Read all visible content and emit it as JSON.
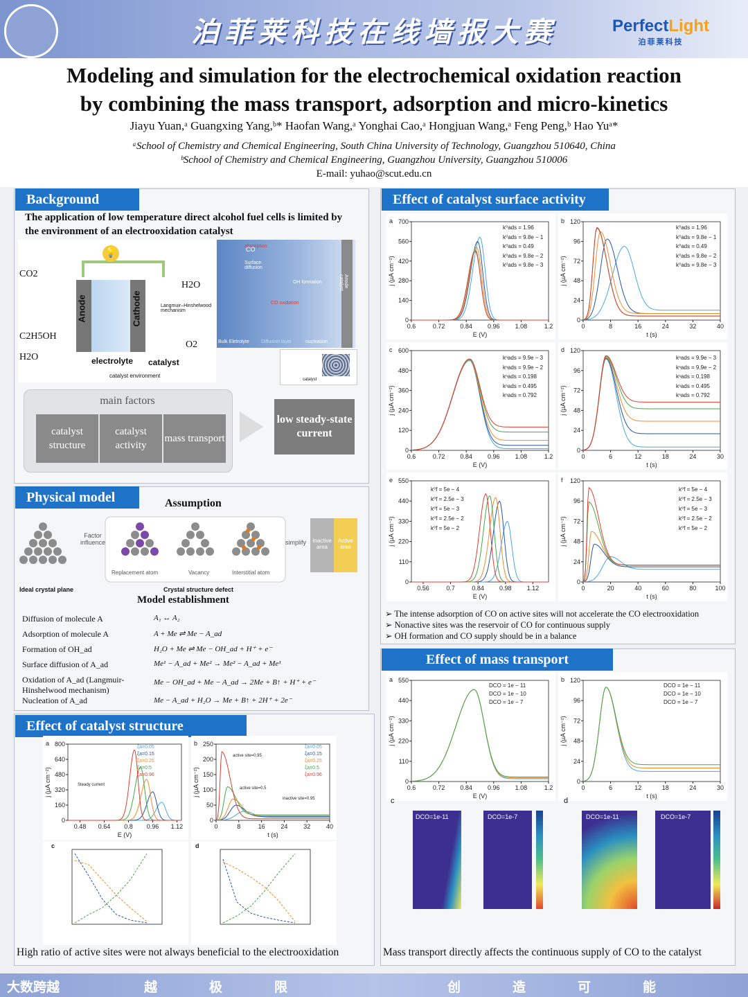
{
  "banner": {
    "title": "泊菲莱科技在线墙报大赛",
    "logo_brand_1": "Perfect",
    "logo_brand_2": "Light",
    "logo_sub": "泊菲莱科技"
  },
  "header": {
    "title_line1": "Modeling and simulation for the electrochemical oxidation reaction",
    "title_line2": "by combining the mass transport, adsorption and micro-kinetics",
    "authors": "Jiayu Yuan,ᵃ Guangxing Yang,ᵇ* Haofan Wang,ᵃ Yonghai Cao,ᵃ Hongjuan Wang,ᵃ Feng Peng,ᵇ Hao Yuᵃ*",
    "aff_a": "ᵃSchool of Chemistry and Chemical Engineering, South China University of Technology, Guangzhou 510640, China",
    "aff_b": "ᵇSchool of Chemistry and Chemical Engineering, Guangzhou University, Guangzhou 510006",
    "email": "E-mail: yuhao@scut.edu.cn"
  },
  "background": {
    "heading": "Background",
    "intro": "The application of low temperature direct alcohol fuel cells is limited by the environment of an electrooxidation catalyst",
    "cell": {
      "co2": "CO2",
      "h2o_top": "H2O",
      "c2h5oh": "C2H5OH",
      "h2o_bottom": "H2O",
      "o2": "O2",
      "anode": "Anode",
      "cathode": "Cathode",
      "electrolyte": "electrolyte",
      "catalyst": "catalyst",
      "env": "catalyst environment",
      "lh": "Langmuir–Hinshelwood mechanism"
    },
    "mech": {
      "absorption": "absorption",
      "surface_diffusion": "Surface diffusion",
      "oh_formation": "OH formation",
      "co_oxidation": "CO oxidation",
      "nucleation": "nucleation",
      "bulk": "Bulk Eletrolyte",
      "diffusion_layer": "Diffusion layer",
      "anode_catalyst": "Anode catalyst",
      "catalyst_label": "catalyst",
      "co": "CO"
    },
    "factors_title": "main factors",
    "factors": [
      "catalyst structure",
      "catalyst activity",
      "mass transport"
    ],
    "result": "low steady-state current"
  },
  "physical": {
    "heading": "Physical model",
    "assumption": "Assumption",
    "factor_influence": "Factor influence",
    "ideal": "Ideal crystal plane",
    "defect": "Crystal structure defect",
    "replacement": "Replacement atom",
    "vacancy": "Vacancy",
    "interstitial": "Interstitial atom",
    "simplify": "simplify",
    "inactive": "Inactive area",
    "active": "Active area",
    "model_title": "Model establishment",
    "rows": [
      {
        "name": "Diffusion of molecule A",
        "eq": "A₁ ↔ A₂"
      },
      {
        "name": "Adsorption of molecule A",
        "eq": "A + Me ⇌ Me − A_ad"
      },
      {
        "name": "Formation of OH_ad",
        "eq": "H₂O + Me ⇌ Me − OH_ad + H⁺ + e⁻"
      },
      {
        "name": "Surface diffusion of A_ad",
        "eq": "Me¹ − A_ad + Me² → Me² − A_ad + Me¹"
      },
      {
        "name": "Oxidation of A_ad (Langmuir-Hinshelwood mechanism)",
        "eq": "Me − OH_ad + Me − A_ad → 2Me + B↑ + H⁺ + e⁻"
      },
      {
        "name": "Nucleation of A_ad",
        "eq": "Me − A_ad + H₂O → Me + B↑ + 2H⁺ + 2e⁻"
      }
    ]
  },
  "structure": {
    "heading": "Effect of catalyst structure",
    "caption": "High ratio of active sites were not always beneficial to the electrooxidation",
    "legend": [
      "ξa=0.05",
      "ξa=0.15",
      "ξa=0.25",
      "ξa=0.5",
      "ξa=0.96"
    ],
    "notes": {
      "active95": "active site=0.95",
      "inactive95": "inactive site=0.95",
      "active5": "active site=0.5",
      "steady": "Steady current"
    }
  },
  "activity": {
    "heading": "Effect of catalyst surface activity",
    "bullets": [
      "The intense adsorption of CO on active sites will not accelerate the CO electrooxidation",
      "Nonactive sites was the reservoir of CO for continuous supply",
      "OH formation and CO supply should be in a balance"
    ],
    "legend_ab": [
      "k⁰ads = 1.96",
      "k⁰ads = 9.8e − 1",
      "k⁰ads = 0.49",
      "k⁰ads = 9.8e − 2",
      "k⁰ads = 9.8e − 3"
    ],
    "legend_cd": [
      "kⁿads = 9.9e − 3",
      "kⁿads = 9.9e − 2",
      "kⁿads = 0.198",
      "kⁿads = 0.495",
      "kⁿads = 0.792"
    ],
    "legend_ef": [
      "k⁰f = 5e − 4",
      "k⁰f = 2.5e − 3",
      "k⁰f = 5e − 3",
      "k⁰f = 2.5e − 2",
      "k⁰f = 5e − 2"
    ]
  },
  "mass": {
    "heading": "Effect of mass transport",
    "caption": "Mass transport directly affects the continuous supply of CO to the catalyst",
    "legend": [
      "DCO = 1e − 11",
      "DCO = 1e − 10",
      "DCO = 1e − 7"
    ],
    "maps": [
      "DCO=1e-11",
      "DCO=1e-7",
      "DCO=1e-11",
      "DCO=1e-7"
    ]
  },
  "footer": {
    "brand": "大数跨越",
    "chars": [
      "越",
      "极",
      "限",
      "创",
      "造",
      "可",
      "能"
    ]
  },
  "colors": {
    "blue": "#1e73c9",
    "c1": "#4aa6e0",
    "c2": "#2554a8",
    "c3": "#f08a2b",
    "c4": "#44a845",
    "c5": "#e33b2f"
  },
  "chart_data": [
    {
      "type": "line",
      "id": "activity-a",
      "title": "a",
      "xlabel": "E (V)",
      "ylabel": "j (µA cm⁻²)",
      "xlim": [
        0.6,
        1.2
      ],
      "ylim": [
        0,
        700
      ],
      "x_ticks": [
        0.6,
        0.72,
        0.84,
        0.96,
        1.08,
        1.2
      ],
      "y_ticks": [
        0,
        140,
        280,
        420,
        560,
        700
      ],
      "series": [
        {
          "name": "k=1.96",
          "peak_x": 0.9,
          "peak_y": 590,
          "width": 0.03
        },
        {
          "name": "k=9.8e-1",
          "peak_x": 0.89,
          "peak_y": 560,
          "width": 0.03
        },
        {
          "name": "k=0.49",
          "peak_x": 0.885,
          "peak_y": 520,
          "width": 0.03
        },
        {
          "name": "k=9.8e-2",
          "peak_x": 0.88,
          "peak_y": 500,
          "width": 0.03
        },
        {
          "name": "k=9.8e-3",
          "peak_x": 0.88,
          "peak_y": 490,
          "width": 0.03
        }
      ]
    },
    {
      "type": "line",
      "id": "activity-b",
      "title": "b",
      "xlabel": "t (s)",
      "ylabel": "j (µA cm⁻²)",
      "xlim": [
        0,
        40
      ],
      "ylim": [
        0,
        120
      ],
      "x_ticks": [
        0,
        8,
        16,
        24,
        32,
        40
      ],
      "y_ticks": [
        0,
        24,
        48,
        72,
        96,
        120
      ],
      "series": [
        {
          "name": "k=1.96",
          "peak_x": 12,
          "peak_y": 90,
          "tail": 12
        },
        {
          "name": "k=9.8e-1",
          "peak_x": 7,
          "peak_y": 99,
          "tail": 8
        },
        {
          "name": "k=0.49",
          "peak_x": 5,
          "peak_y": 108,
          "tail": 8
        },
        {
          "name": "k=9.8e-2",
          "peak_x": 4,
          "peak_y": 112,
          "tail": 5
        },
        {
          "name": "k=9.8e-3",
          "peak_x": 4,
          "peak_y": 113,
          "tail": 5
        }
      ]
    },
    {
      "type": "line",
      "id": "activity-c",
      "title": "c",
      "xlabel": "E (V)",
      "ylabel": "j (µA cm⁻²)",
      "xlim": [
        0.6,
        1.2
      ],
      "ylim": [
        0,
        600
      ],
      "x_ticks": [
        0.6,
        0.72,
        0.84,
        0.96,
        1.08,
        1.2
      ],
      "y_ticks": [
        0,
        120,
        240,
        360,
        480,
        600
      ],
      "series": [
        {
          "name": "k=9.9e-3",
          "peak_x": 0.855,
          "peak_y": 540,
          "tail": 10
        },
        {
          "name": "k=9.9e-2",
          "peak_x": 0.855,
          "peak_y": 545,
          "tail": 30
        },
        {
          "name": "k=0.198",
          "peak_x": 0.855,
          "peak_y": 545,
          "tail": 60
        },
        {
          "name": "k=0.495",
          "peak_x": 0.855,
          "peak_y": 548,
          "tail": 110
        },
        {
          "name": "k=0.792",
          "peak_x": 0.855,
          "peak_y": 550,
          "tail": 140
        }
      ]
    },
    {
      "type": "line",
      "id": "activity-d",
      "title": "d",
      "xlabel": "t (s)",
      "ylabel": "j (µA cm⁻²)",
      "xlim": [
        0,
        30
      ],
      "ylim": [
        0,
        120
      ],
      "x_ticks": [
        0,
        6,
        12,
        18,
        24,
        30
      ],
      "y_ticks": [
        0,
        24,
        48,
        72,
        96,
        120
      ],
      "series": [
        {
          "name": "k=9.9e-3",
          "peak_x": 5,
          "peak_y": 110,
          "tail": 4
        },
        {
          "name": "k=9.9e-2",
          "peak_x": 5,
          "peak_y": 111,
          "tail": 20
        },
        {
          "name": "k=0.198",
          "peak_x": 5,
          "peak_y": 112,
          "tail": 35
        },
        {
          "name": "k=0.495",
          "peak_x": 5,
          "peak_y": 113,
          "tail": 50
        },
        {
          "name": "k=0.792",
          "peak_x": 5,
          "peak_y": 114,
          "tail": 58
        }
      ]
    },
    {
      "type": "line",
      "id": "activity-e",
      "title": "e",
      "xlabel": "E (V)",
      "ylabel": "j (µA cm⁻²)",
      "xlim": [
        0.5,
        1.2
      ],
      "ylim": [
        0,
        550
      ],
      "x_ticks": [
        0.56,
        0.7,
        0.84,
        0.98,
        1.12
      ],
      "y_ticks": [
        0,
        110,
        220,
        330,
        440,
        550
      ],
      "series": [
        {
          "name": "kf=5e-4",
          "peak_x": 0.99,
          "peak_y": 330,
          "width": 0.03
        },
        {
          "name": "kf=2.5e-3",
          "peak_x": 0.95,
          "peak_y": 440,
          "width": 0.03
        },
        {
          "name": "kf=5e-3",
          "peak_x": 0.93,
          "peak_y": 460,
          "width": 0.03
        },
        {
          "name": "kf=2.5e-2",
          "peak_x": 0.9,
          "peak_y": 470,
          "width": 0.03
        },
        {
          "name": "kf=5e-2",
          "peak_x": 0.88,
          "peak_y": 480,
          "width": 0.03
        }
      ]
    },
    {
      "type": "line",
      "id": "activity-f",
      "title": "f",
      "xlabel": "t (s)",
      "ylabel": "j (µA cm⁻²)",
      "xlim": [
        0,
        100
      ],
      "ylim": [
        0,
        120
      ],
      "x_ticks": [
        0,
        20,
        40,
        60,
        80,
        100
      ],
      "y_ticks": [
        0,
        24,
        48,
        72,
        96,
        120
      ],
      "series": [
        {
          "name": "kf=5e-4",
          "peak_x": 20,
          "peak_y": 30,
          "tail": 15
        },
        {
          "name": "kf=2.5e-3",
          "peak_x": 8,
          "peak_y": 45,
          "tail": 18
        },
        {
          "name": "kf=5e-3",
          "peak_x": 6,
          "peak_y": 60,
          "tail": 20
        },
        {
          "name": "kf=2.5e-2",
          "peak_x": 4,
          "peak_y": 95,
          "tail": 20
        },
        {
          "name": "kf=5e-2",
          "peak_x": 4,
          "peak_y": 112,
          "tail": 20
        }
      ]
    },
    {
      "type": "line",
      "id": "mass-a",
      "title": "a",
      "xlabel": "E (V)",
      "ylabel": "j (µA cm⁻²)",
      "xlim": [
        0.6,
        1.2
      ],
      "ylim": [
        0,
        550
      ],
      "x_ticks": [
        0.6,
        0.72,
        0.84,
        0.96,
        1.08,
        1.2
      ],
      "y_ticks": [
        0,
        110,
        220,
        330,
        440,
        550
      ],
      "series": [
        {
          "name": "D=1e-11",
          "peak_x": 0.875,
          "peak_y": 500,
          "tail": 15
        },
        {
          "name": "D=1e-10",
          "peak_x": 0.875,
          "peak_y": 500,
          "tail": 20
        },
        {
          "name": "D=1e-7",
          "peak_x": 0.875,
          "peak_y": 500,
          "tail": 25
        }
      ]
    },
    {
      "type": "line",
      "id": "mass-b",
      "title": "b",
      "xlabel": "t (s)",
      "ylabel": "j (µA cm⁻²)",
      "xlim": [
        0,
        30
      ],
      "ylim": [
        0,
        120
      ],
      "x_ticks": [
        0,
        6,
        12,
        18,
        24,
        30
      ],
      "y_ticks": [
        0,
        24,
        48,
        72,
        96,
        120
      ],
      "series": [
        {
          "name": "D=1e-11",
          "peak_x": 5,
          "peak_y": 112,
          "tail": 12
        },
        {
          "name": "D=1e-10",
          "peak_x": 5,
          "peak_y": 112,
          "tail": 16
        },
        {
          "name": "D=1e-7",
          "peak_x": 5,
          "peak_y": 112,
          "tail": 20
        }
      ]
    },
    {
      "type": "line",
      "id": "struct-a",
      "title": "a",
      "xlabel": "E (V)",
      "ylabel": "j (µA cm⁻²)",
      "xlim": [
        0.4,
        1.15
      ],
      "ylim": [
        0,
        800
      ],
      "x_ticks": [
        0.48,
        0.64,
        0.8,
        0.96,
        1.12
      ],
      "y_ticks": [
        0,
        160,
        320,
        480,
        640,
        800
      ],
      "series": [
        {
          "name": "0.05",
          "peak_x": 1.02,
          "peak_y": 190,
          "width": 0.035
        },
        {
          "name": "0.15",
          "peak_x": 0.96,
          "peak_y": 300,
          "width": 0.035
        },
        {
          "name": "0.25",
          "peak_x": 0.92,
          "peak_y": 430,
          "width": 0.035
        },
        {
          "name": "0.5",
          "peak_x": 0.88,
          "peak_y": 560,
          "width": 0.035
        },
        {
          "name": "0.96",
          "peak_x": 0.84,
          "peak_y": 740,
          "width": 0.03
        }
      ]
    },
    {
      "type": "line",
      "id": "struct-b",
      "title": "b",
      "xlabel": "t (s)",
      "ylabel": "j (µA cm⁻²)",
      "xlim": [
        0,
        40
      ],
      "ylim": [
        0,
        250
      ],
      "x_ticks": [
        0,
        8,
        16,
        24,
        32,
        40
      ],
      "y_ticks": [
        0,
        50,
        100,
        150,
        200,
        250
      ],
      "series": [
        {
          "name": "0.05",
          "peak_x": 10,
          "peak_y": 30,
          "tail": 10
        },
        {
          "name": "0.15",
          "peak_x": 7,
          "peak_y": 50,
          "tail": 12
        },
        {
          "name": "0.25",
          "peak_x": 6,
          "peak_y": 70,
          "tail": 15
        },
        {
          "name": "0.5",
          "peak_x": 4,
          "peak_y": 110,
          "tail": 18
        },
        {
          "name": "0.96",
          "peak_x": 2,
          "peak_y": 225,
          "tail": 5
        }
      ]
    }
  ]
}
